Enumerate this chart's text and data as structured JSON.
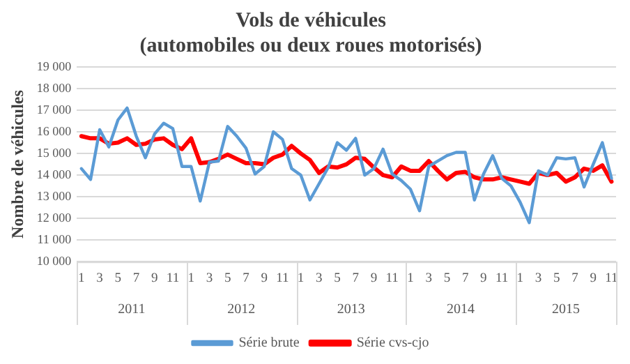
{
  "chart_data": {
    "type": "line",
    "title": [
      "Vols de véhicules",
      "(automobiles ou deux roues motorisés)"
    ],
    "ylabel": "Nombre de véhicules",
    "categories": [
      "1",
      null,
      "3",
      null,
      "5",
      null,
      "7",
      null,
      "9",
      null,
      "11",
      null,
      "1",
      null,
      "3",
      null,
      "5",
      null,
      "7",
      null,
      "9",
      null,
      "11",
      null,
      "1",
      null,
      "3",
      null,
      "5",
      null,
      "7",
      null,
      "9",
      null,
      "11",
      null,
      "1",
      null,
      "3",
      null,
      "5",
      null,
      "7",
      null,
      "9",
      null,
      "11",
      null,
      "1",
      null,
      "3",
      null,
      "5",
      null,
      "7",
      null,
      "9",
      null,
      "11"
    ],
    "annotations": [
      "2011",
      "2012",
      "2013",
      "2014",
      "2015"
    ],
    "series": [
      {
        "name": "Série brute",
        "color": "#5b9bd5",
        "values": [
          14300,
          13800,
          16100,
          15300,
          16550,
          17100,
          15800,
          14800,
          15900,
          16400,
          16150,
          14400,
          14400,
          12800,
          14600,
          14650,
          16250,
          15800,
          15250,
          14050,
          14400,
          16000,
          15650,
          14300,
          14000,
          12850,
          13600,
          14350,
          15500,
          15150,
          15700,
          14000,
          14300,
          15200,
          14050,
          13750,
          13350,
          12350,
          14400,
          14650,
          14900,
          15050,
          15050,
          12850,
          14050,
          14900,
          13850,
          13500,
          12750,
          11800,
          14200,
          14000,
          14800,
          14750,
          14800,
          13450,
          14500,
          15500,
          13850
        ]
      },
      {
        "name": "Série cvs-cjo",
        "color": "#ff0000",
        "values": [
          15800,
          15700,
          15700,
          15450,
          15500,
          15700,
          15400,
          15450,
          15650,
          15700,
          15400,
          15200,
          15700,
          14550,
          14600,
          14750,
          14950,
          14750,
          14550,
          14550,
          14500,
          14800,
          14950,
          15350,
          15000,
          14700,
          14100,
          14400,
          14350,
          14500,
          14800,
          14750,
          14350,
          14000,
          13900,
          14400,
          14200,
          14200,
          14650,
          14200,
          13800,
          14100,
          14150,
          13900,
          13800,
          13800,
          13900,
          13800,
          13700,
          13600,
          14100,
          14000,
          14100,
          13700,
          13900,
          14300,
          14200,
          14450,
          13700
        ]
      }
    ],
    "ylim": [
      10000,
      19000
    ],
    "yticks": [
      {
        "value": 10000,
        "label": "10 000"
      },
      {
        "value": 11000,
        "label": "11 000"
      },
      {
        "value": 12000,
        "label": "12 000"
      },
      {
        "value": 13000,
        "label": "13 000"
      },
      {
        "value": 14000,
        "label": "14 000"
      },
      {
        "value": 15000,
        "label": "15 000"
      },
      {
        "value": 16000,
        "label": "16 000"
      },
      {
        "value": 17000,
        "label": "17 000"
      },
      {
        "value": 18000,
        "label": "18 000"
      },
      {
        "value": 19000,
        "label": "19 000"
      }
    ],
    "grid": "y",
    "legend": "bottom",
    "marker": "none",
    "line_style": "solid"
  }
}
